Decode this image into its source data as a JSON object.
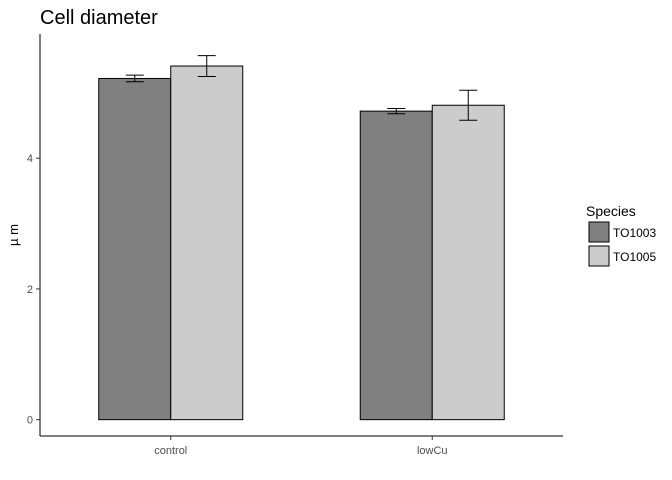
{
  "chart_data": {
    "type": "bar",
    "title": "Cell diameter",
    "xlabel": "",
    "ylabel": "µ m",
    "categories": [
      "control",
      "lowCu"
    ],
    "series": [
      {
        "name": "TO1003",
        "color": "#808080",
        "values": [
          5.22,
          4.72
        ],
        "error": [
          0.05,
          0.04
        ]
      },
      {
        "name": "TO1005",
        "color": "#cccccc",
        "values": [
          5.41,
          4.81
        ],
        "error": [
          0.16,
          0.23
        ]
      }
    ],
    "ylim": [
      -0.25,
      5.9
    ],
    "yticks": [
      0,
      2,
      4
    ],
    "grid": false,
    "legend": {
      "title": "Species",
      "placement": "right"
    }
  }
}
